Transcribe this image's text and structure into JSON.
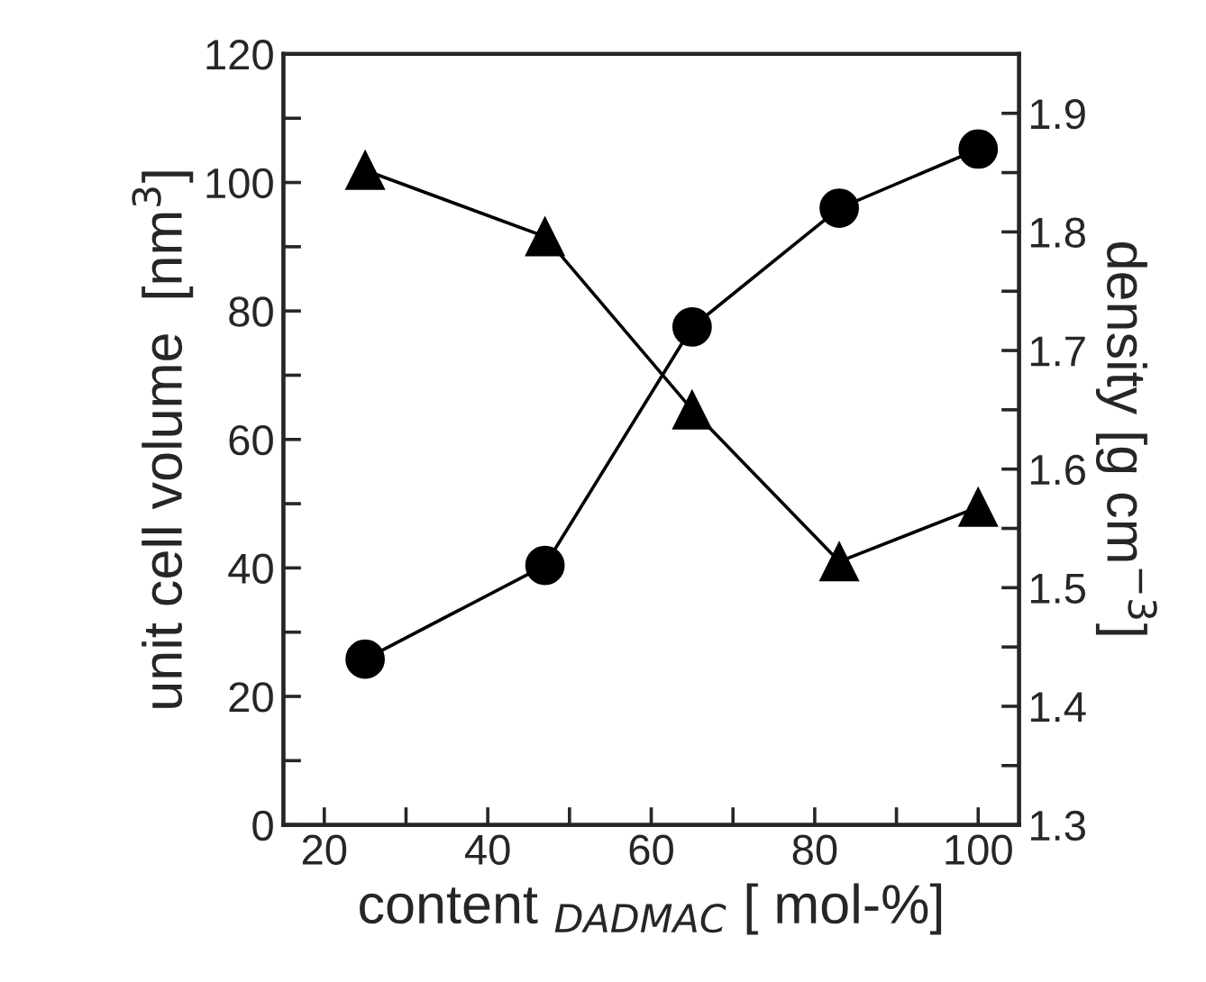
{
  "chart_data": {
    "type": "line",
    "xlabel": "content $_{DADMAC}$ [ mol-%]",
    "ylabel": "unit cell volume  [nm$^{3}$]",
    "y2label": "density [g cm$^{−3}$]",
    "x": [
      25,
      47,
      65,
      83,
      100
    ],
    "series": [
      {
        "color": "#000000",
        "marker": "circle",
        "axis": "y",
        "values": [
          25.8,
          40.4,
          77.5,
          96,
          105.2
        ]
      },
      {
        "color": "#000000",
        "marker": "triangle",
        "axis": "y2",
        "values": [
          1.852,
          1.796,
          1.65,
          1.522,
          1.568
        ]
      }
    ],
    "line_style": "solid",
    "xlim": [
      15,
      105
    ],
    "xticks": [
      20,
      {
        "value": 30,
        "label": null
      },
      40,
      {
        "value": 50,
        "label": null
      },
      60,
      {
        "value": 70,
        "label": null
      },
      80,
      {
        "value": 90,
        "label": null
      },
      100
    ],
    "ylim": [
      0,
      120
    ],
    "yticks": [
      0,
      {
        "value": 10,
        "label": null
      },
      20,
      {
        "value": 30,
        "label": null
      },
      40,
      {
        "value": 50,
        "label": null
      },
      60,
      {
        "value": 70,
        "label": null
      },
      80,
      {
        "value": 90,
        "label": null
      },
      100,
      {
        "value": 110,
        "label": null
      },
      120
    ],
    "y2lim": [
      1.3,
      1.95
    ],
    "y2ticks": [
      1.3,
      {
        "value": 1.35,
        "label": null
      },
      1.4,
      {
        "value": 1.45,
        "label": null
      },
      1.5,
      {
        "value": 1.55,
        "label": null
      },
      1.6,
      {
        "value": 1.65,
        "label": null
      },
      1.7,
      {
        "value": 1.75,
        "label": null
      },
      1.8,
      {
        "value": 1.85,
        "label": null
      },
      1.9
    ],
    "grid": false,
    "legend": false
  }
}
